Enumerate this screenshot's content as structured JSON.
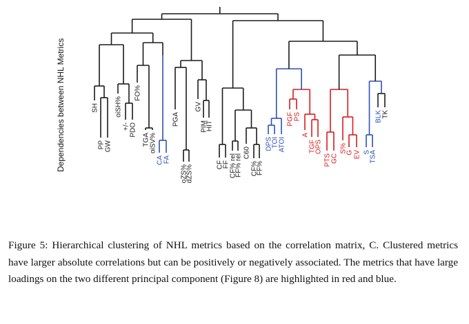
{
  "figure": {
    "number_label": "Figure 5:",
    "caption_text": "Hierarchical clustering of NHL metrics based on the correlation matrix, C. Clustered metrics have larger absolute correlations but can be positively or negatively associated. The metrics that have large loadings on the two different principal component (Figure 8) are highlighted in red and blue.",
    "y_axis_label": "Dependencies between NHL Metrics"
  },
  "colors": {
    "black": "#1a1a1a",
    "red": "#d7191c",
    "blue": "#2b4fb8"
  },
  "leaves": [
    {
      "label": "SH",
      "color": "black"
    },
    {
      "label": "PP",
      "color": "black"
    },
    {
      "label": "GW",
      "color": "black"
    },
    {
      "label": "oiSH%",
      "color": "black"
    },
    {
      "label": "+/-",
      "color": "black"
    },
    {
      "label": "PDO",
      "color": "black"
    },
    {
      "label": "FO%",
      "color": "black"
    },
    {
      "label": "TGA",
      "color": "black"
    },
    {
      "label": "oiSV%",
      "color": "black"
    },
    {
      "label": "CA",
      "color": "blue"
    },
    {
      "label": "FA",
      "color": "blue"
    },
    {
      "label": "PGA",
      "color": "black"
    },
    {
      "label": "oZS%",
      "color": "black"
    },
    {
      "label": "dZS%",
      "color": "black"
    },
    {
      "label": "GV",
      "color": "black"
    },
    {
      "label": "PIM",
      "color": "black"
    },
    {
      "label": "HIT",
      "color": "black"
    },
    {
      "label": "CF",
      "color": "black"
    },
    {
      "label": "FF",
      "color": "black"
    },
    {
      "label": "CF% rel",
      "color": "black"
    },
    {
      "label": "FF% rel",
      "color": "black"
    },
    {
      "label": "C60",
      "color": "black"
    },
    {
      "label": "CF%",
      "color": "black"
    },
    {
      "label": "FF%",
      "color": "black"
    },
    {
      "label": "DPS",
      "color": "blue"
    },
    {
      "label": "TOI",
      "color": "blue"
    },
    {
      "label": "ATOI",
      "color": "blue"
    },
    {
      "label": "PGF",
      "color": "red"
    },
    {
      "label": "PS",
      "color": "red"
    },
    {
      "label": "A",
      "color": "red"
    },
    {
      "label": "TGF",
      "color": "red"
    },
    {
      "label": "OPS",
      "color": "red"
    },
    {
      "label": "PTS",
      "color": "red"
    },
    {
      "label": "GC",
      "color": "red"
    },
    {
      "label": "S%",
      "color": "red"
    },
    {
      "label": "G",
      "color": "red"
    },
    {
      "label": "EV",
      "color": "red"
    },
    {
      "label": "S",
      "color": "blue"
    },
    {
      "label": "TSA",
      "color": "blue"
    },
    {
      "label": "BLK",
      "color": "blue"
    },
    {
      "label": "TK",
      "color": "black"
    }
  ]
}
